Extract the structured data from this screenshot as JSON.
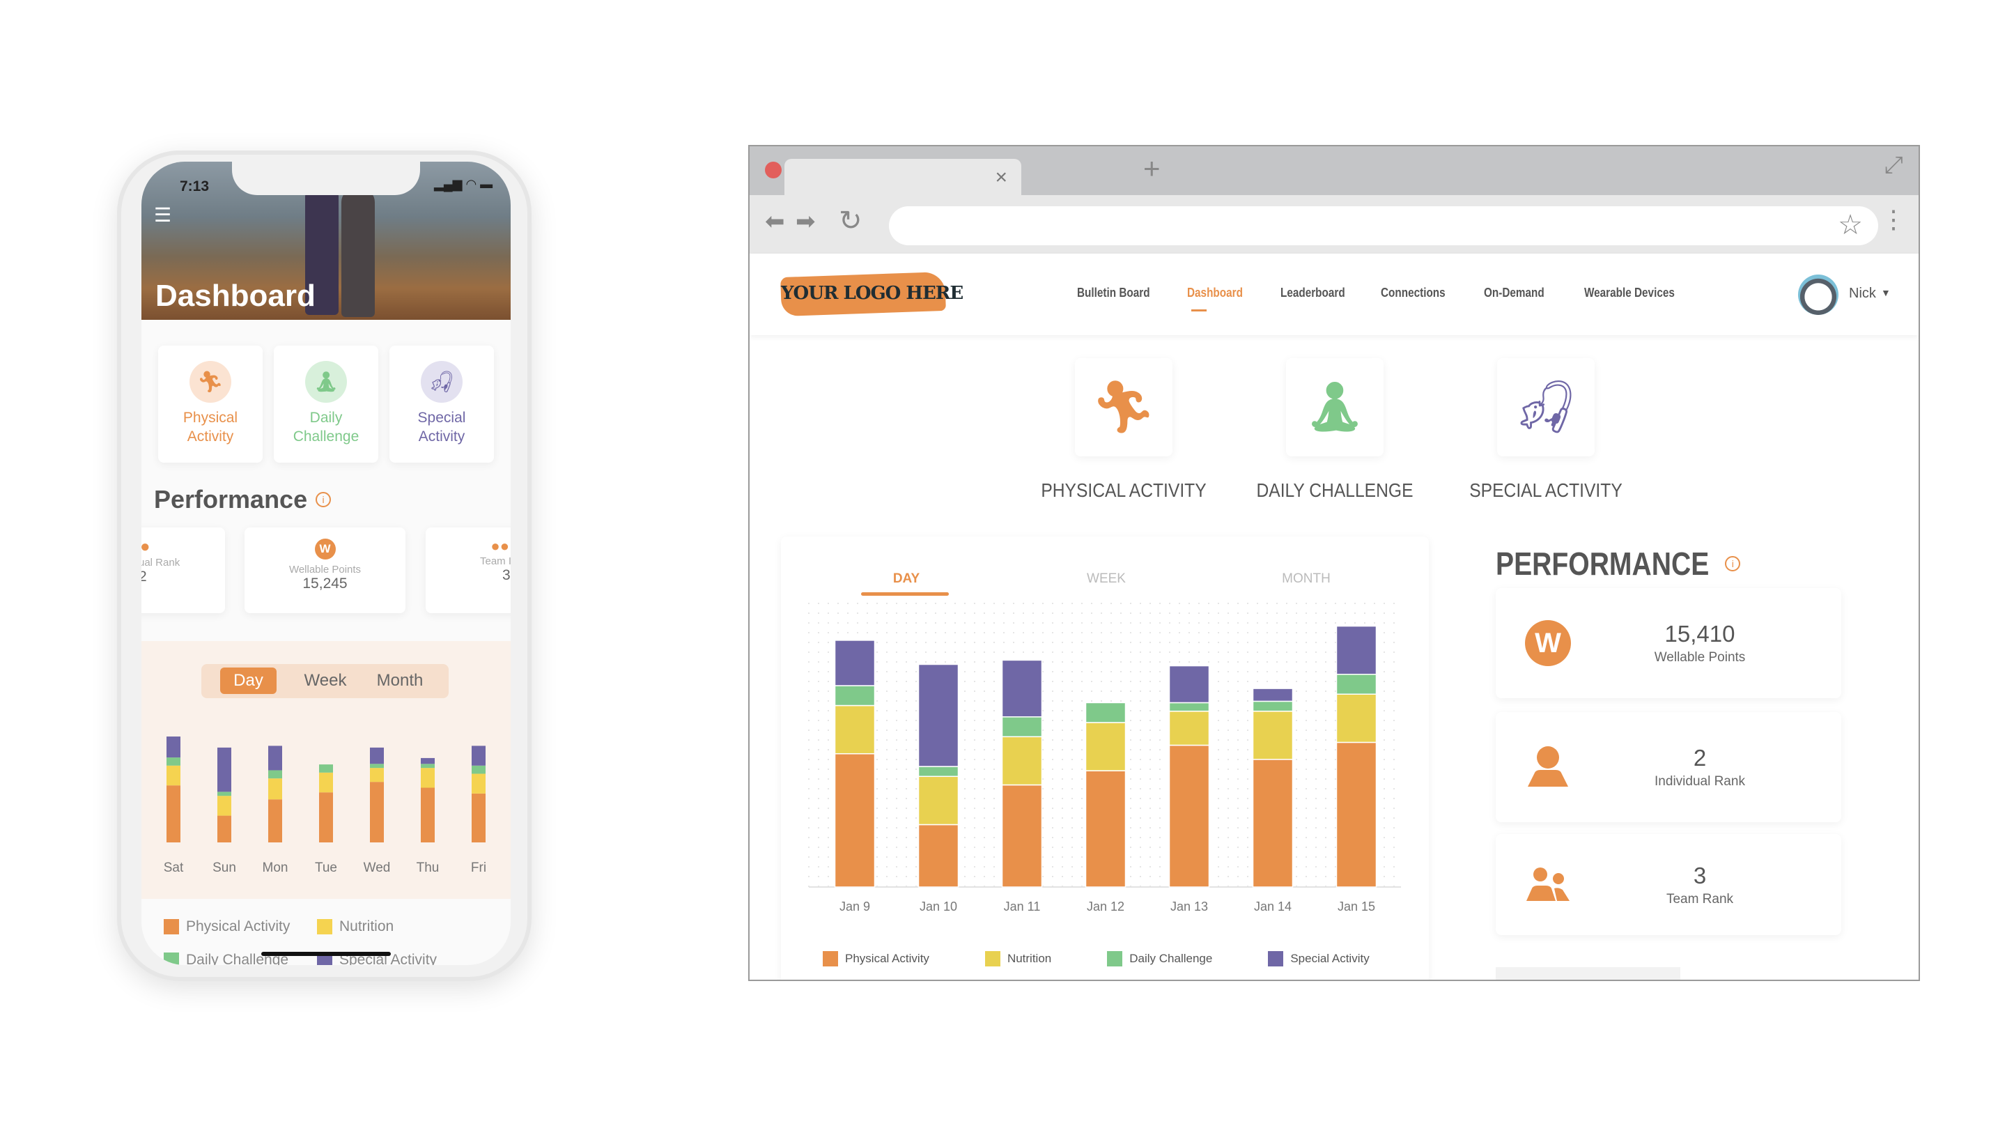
{
  "colors": {
    "physical": "#e8904a",
    "nutrition": "#e8d150",
    "daily": "#7fc98a",
    "special": "#6f67a6",
    "accent": "#e8904a"
  },
  "mobile": {
    "status_time": "7:13",
    "header_title": "Dashboard",
    "categories": [
      {
        "line1": "Physical",
        "line2": "Activity",
        "icon": "running-icon"
      },
      {
        "line1": "Daily",
        "line2": "Challenge",
        "icon": "meditation-icon"
      },
      {
        "line1": "Special",
        "line2": "Activity",
        "icon": "fishing-icon"
      }
    ],
    "performance_title": "Performance",
    "perf_cards": [
      {
        "label": "ual Rank",
        "value": "2"
      },
      {
        "label": "Wellable Points",
        "value": "15,245"
      },
      {
        "label": "Team I",
        "value": "3"
      }
    ],
    "toggle": [
      "Day",
      "Week",
      "Month"
    ],
    "legend": [
      "Physical Activity",
      "Nutrition",
      "Daily Challenge",
      "Special Activity"
    ]
  },
  "desktop": {
    "logo_text": "YOUR LOGO HERE",
    "nav": [
      "Bulletin Board",
      "Dashboard",
      "Leaderboard",
      "Connections",
      "On-Demand",
      "Wearable Devices"
    ],
    "active_nav": "Dashboard",
    "user_name": "Nick",
    "categories": [
      {
        "label": "PHYSICAL ACTIVITY",
        "icon": "running-icon"
      },
      {
        "label": "DAILY CHALLENGE",
        "icon": "meditation-icon"
      },
      {
        "label": "SPECIAL ACTIVITY",
        "icon": "fishing-icon"
      }
    ],
    "chart_tabs": [
      "DAY",
      "WEEK",
      "MONTH"
    ],
    "performance_title": "PERFORMANCE",
    "perf_cards": [
      {
        "value": "15,410",
        "label": "Wellable Points",
        "icon": "wellable-w-icon"
      },
      {
        "value": "2",
        "label": "Individual Rank",
        "icon": "person-icon"
      },
      {
        "value": "3",
        "label": "Team Rank",
        "icon": "team-icon"
      }
    ]
  },
  "chart_data": [
    {
      "type": "bar",
      "stacked": true,
      "categories": [
        "Jan 9",
        "Jan 10",
        "Jan 11",
        "Jan 12",
        "Jan 13",
        "Jan 14",
        "Jan 15"
      ],
      "series": [
        {
          "name": "Physical Activity",
          "values": [
            47,
            22,
            36,
            41,
            50,
            45,
            51
          ]
        },
        {
          "name": "Nutrition",
          "values": [
            17,
            17,
            17,
            17,
            12,
            17,
            17
          ]
        },
        {
          "name": "Daily Challenge",
          "values": [
            7,
            3.5,
            7,
            7,
            3,
            3.5,
            7
          ]
        },
        {
          "name": "Special Activity",
          "values": [
            16,
            36,
            20,
            0,
            13,
            4.5,
            17
          ]
        }
      ],
      "ylim": [
        0,
        100
      ],
      "grid": "dotted",
      "legend": "bottom"
    },
    {
      "type": "bar",
      "stacked": true,
      "categories": [
        "Sat",
        "Sun",
        "Mon",
        "Tue",
        "Wed",
        "Thu",
        "Fri"
      ],
      "series": [
        {
          "name": "Physical Activity",
          "values": [
            49,
            23,
            37,
            43,
            52,
            47,
            42
          ]
        },
        {
          "name": "Nutrition",
          "values": [
            17,
            17,
            18,
            17,
            12,
            17,
            17
          ]
        },
        {
          "name": "Daily Challenge",
          "values": [
            7,
            3.5,
            7,
            7,
            3.5,
            3.5,
            7
          ]
        },
        {
          "name": "Special Activity",
          "values": [
            18,
            38,
            21,
            0,
            14,
            5,
            17
          ]
        }
      ],
      "ylim": [
        0,
        100
      ],
      "legend": "bottom"
    }
  ]
}
